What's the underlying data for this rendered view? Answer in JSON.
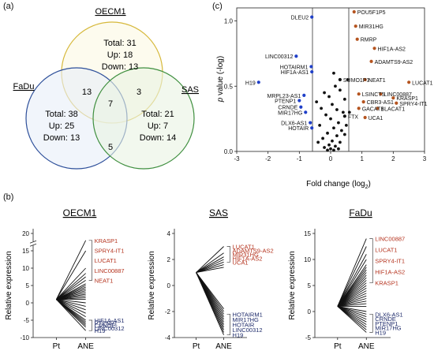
{
  "panel_labels": {
    "a": "(a)",
    "b": "(b)",
    "c": "(c)"
  },
  "colors": {
    "oecm1": "#d6b83a",
    "fadu": "#2d4f9a",
    "sas": "#3f8f3f",
    "up": "#b5341f",
    "down": "#1d2a6a",
    "point_up": "#b5541f",
    "point_down": "#1f3fc8",
    "point_ns": "#111111"
  },
  "venn": {
    "circles": [
      {
        "key": "oecm1",
        "name": "OECM1",
        "total": "Total: 31",
        "up": "Up: 18",
        "down": "Down: 13"
      },
      {
        "key": "fadu",
        "name": "FaDu",
        "total": "Total: 38",
        "up": "Up: 25",
        "down": "Down: 13"
      },
      {
        "key": "sas",
        "name": "SAS",
        "total": "Total: 21",
        "up": "Up: 7",
        "down": "Down: 14"
      }
    ],
    "overlaps": {
      "oecm1_fadu": "13",
      "oecm1_sas": "3",
      "fadu_sas": "5",
      "all": "7"
    }
  },
  "chart_data": [
    {
      "type": "scatter",
      "panel": "c",
      "xlabel_main": "Fold change (log",
      "xlabel_sub": "2",
      "xlabel_tail": ")",
      "ylabel_p": "p",
      "ylabel_rest": " value (-log)",
      "xlim": [
        -3,
        3
      ],
      "ylim": [
        0,
        1.1
      ],
      "xticks": [
        "-3",
        "-2",
        "-1",
        "0",
        "1",
        "2",
        "3"
      ],
      "yticks": [
        "0.0",
        "0.5",
        "1.0"
      ],
      "thresholds_x": [
        -0.58,
        0.58
      ],
      "labeled_points": [
        {
          "name": "DLEU2",
          "x": -0.6,
          "y": 1.03,
          "cls": "down"
        },
        {
          "name": "LINC00312",
          "x": -1.1,
          "y": 0.73,
          "cls": "down"
        },
        {
          "name": "HOTAIRM1",
          "x": -0.62,
          "y": 0.65,
          "cls": "down"
        },
        {
          "name": "HIF1A-AS1",
          "x": -0.6,
          "y": 0.61,
          "cls": "down"
        },
        {
          "name": "H19",
          "x": -2.3,
          "y": 0.53,
          "cls": "down"
        },
        {
          "name": "MRPL23-AS1",
          "x": -0.85,
          "y": 0.43,
          "cls": "down"
        },
        {
          "name": "PTENP1",
          "x": -1.0,
          "y": 0.39,
          "cls": "down"
        },
        {
          "name": "CRNDE",
          "x": -0.95,
          "y": 0.34,
          "cls": "down"
        },
        {
          "name": "MIR17HG",
          "x": -0.8,
          "y": 0.3,
          "cls": "down"
        },
        {
          "name": "DLX6-AS1",
          "x": -0.65,
          "y": 0.22,
          "cls": "down"
        },
        {
          "name": "HOTAIR",
          "x": -0.6,
          "y": 0.18,
          "cls": "down"
        },
        {
          "name": "POU5F1P5",
          "x": 0.75,
          "y": 1.07,
          "cls": "up"
        },
        {
          "name": "MIR31HG",
          "x": 0.8,
          "y": 0.96,
          "cls": "up"
        },
        {
          "name": "RMRP",
          "x": 0.85,
          "y": 0.86,
          "cls": "up"
        },
        {
          "name": "HIF1A-AS2",
          "x": 1.4,
          "y": 0.79,
          "cls": "up"
        },
        {
          "name": "ADAMTS9-AS2",
          "x": 1.3,
          "y": 0.69,
          "cls": "up"
        },
        {
          "name": "NEAT1",
          "x": 1.1,
          "y": 0.55,
          "cls": "up"
        },
        {
          "name": "LUCAT1",
          "x": 2.5,
          "y": 0.53,
          "cls": "up"
        },
        {
          "name": "SUMO1P3",
          "x": 0.3,
          "y": 0.55,
          "cls": "ns"
        },
        {
          "name": "LSINCT5",
          "x": 0.9,
          "y": 0.44,
          "cls": "up"
        },
        {
          "name": "LINC00887",
          "x": 1.6,
          "y": 0.44,
          "cls": "up"
        },
        {
          "name": "KRASP1",
          "x": 2.0,
          "y": 0.41,
          "cls": "up"
        },
        {
          "name": "CBR3-AS1",
          "x": 1.05,
          "y": 0.38,
          "cls": "up"
        },
        {
          "name": "SPRY4-IT1",
          "x": 2.1,
          "y": 0.37,
          "cls": "up"
        },
        {
          "name": "GACAT1",
          "x": 0.9,
          "y": 0.33,
          "cls": "up"
        },
        {
          "name": "BLACAT1",
          "x": 1.5,
          "y": 0.33,
          "cls": "up"
        },
        {
          "name": "FTX",
          "x": 0.45,
          "y": 0.27,
          "cls": "ns"
        },
        {
          "name": "UCA1",
          "x": 1.1,
          "y": 0.26,
          "cls": "up"
        }
      ],
      "other_points": [
        [
          -0.2,
          0.45
        ],
        [
          -0.05,
          0.42
        ],
        [
          0.15,
          0.5
        ],
        [
          0.3,
          0.47
        ],
        [
          0.45,
          0.4
        ],
        [
          0.05,
          0.36
        ],
        [
          -0.3,
          0.33
        ],
        [
          0.2,
          0.32
        ],
        [
          0.4,
          0.3
        ],
        [
          -0.15,
          0.28
        ],
        [
          0.0,
          0.25
        ],
        [
          0.25,
          0.22
        ],
        [
          -0.35,
          0.2
        ],
        [
          0.1,
          0.18
        ],
        [
          0.35,
          0.16
        ],
        [
          -0.1,
          0.14
        ],
        [
          0.2,
          0.12
        ],
        [
          -0.25,
          0.1
        ],
        [
          0.05,
          0.08
        ],
        [
          0.3,
          0.07
        ],
        [
          -0.05,
          0.05
        ],
        [
          0.15,
          0.04
        ],
        [
          -0.2,
          0.03
        ],
        [
          0.0,
          0.02
        ],
        [
          0.25,
          0.02
        ],
        [
          -0.1,
          0.01
        ],
        [
          0.1,
          0.01
        ],
        [
          0.45,
          0.13
        ],
        [
          -0.4,
          0.07
        ],
        [
          0.5,
          0.2
        ],
        [
          0.55,
          0.55
        ],
        [
          0.6,
          0.3
        ],
        [
          -0.45,
          0.38
        ],
        [
          0.1,
          0.6
        ]
      ]
    },
    {
      "type": "line",
      "panel": "b",
      "title": "OECM1",
      "ylabel": "Relative expression",
      "xcats": [
        "Pt",
        "ANE"
      ],
      "yticks": [
        "-10",
        "-5",
        "0",
        "5",
        "10",
        "15",
        "20"
      ],
      "ylim": [
        -10,
        20
      ],
      "break": true,
      "start": 1,
      "end_values": [
        18,
        15,
        10,
        8.5,
        7.5,
        6.5,
        5.5,
        5,
        4.5,
        4,
        3.5,
        3,
        2.5,
        2,
        1.5,
        1,
        0,
        -1,
        -2,
        -3,
        -4,
        -5,
        -5.5,
        -6,
        -6.5,
        -7,
        -8
      ],
      "up_genes": [
        "KRASP1",
        "SPRY4-IT1",
        "LUCAT1",
        "LINC00887",
        "NEAT1"
      ],
      "down_genes": [
        "HIF1A-AS1",
        "PTENP1",
        "CRNDE",
        "LINC00312",
        "H19"
      ]
    },
    {
      "type": "line",
      "panel": "b",
      "title": "SAS",
      "ylabel": "Relative expression",
      "xcats": [
        "Pt",
        "ANE"
      ],
      "yticks": [
        "-4",
        "-2",
        "0",
        "2",
        "4"
      ],
      "ylim": [
        -4,
        4
      ],
      "start": 1,
      "end_values": [
        3,
        2.5,
        2.2,
        2,
        1.8,
        1.6,
        1.4,
        -1.8,
        -2,
        -2.2,
        -2.4,
        -2.6,
        -2.8,
        -3,
        -3.2,
        -3.4,
        -3.6,
        -3.8
      ],
      "up_genes": [
        "LUCAT1",
        "ADAMTS9-AS2",
        "MIR31HG",
        "HIF1A-AS2",
        "UCA1"
      ],
      "down_genes": [
        "HOTAIRM1",
        "MIR17HG",
        "HOTAIR",
        "LINC00312",
        "H19"
      ]
    },
    {
      "type": "line",
      "panel": "b",
      "title": "FaDu",
      "ylabel": "Relative expression",
      "xcats": [
        "Pt",
        "ANE"
      ],
      "yticks": [
        "-5",
        "0",
        "5",
        "10",
        "15"
      ],
      "ylim": [
        -5,
        15
      ],
      "start": 1,
      "end_values": [
        14,
        12.5,
        11,
        10,
        9,
        8.5,
        8,
        7.5,
        7,
        6.5,
        6,
        5.5,
        5,
        4.5,
        4,
        3.5,
        3,
        2.5,
        2,
        1.5,
        1,
        0,
        -0.5,
        -1,
        -1.5,
        -2,
        -2.5,
        -3,
        -3.5,
        -4
      ],
      "up_genes": [
        "LINC00887",
        "LUCAT1",
        "SPRY4-IT1",
        "HIF1A-AS2",
        "KRASP1"
      ],
      "down_genes": [
        "DLX6-AS1",
        "CRNDE",
        "PTENP1",
        "MIR17HG",
        "H19"
      ]
    }
  ]
}
